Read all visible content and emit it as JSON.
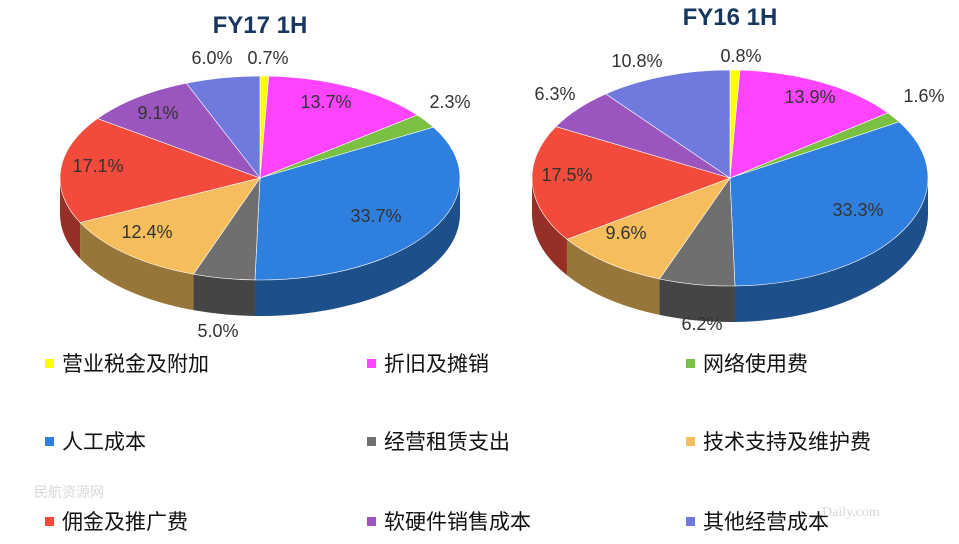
{
  "chart_data": [
    {
      "type": "pie",
      "title": "FY17 1H",
      "categories": [
        "营业税金及附加",
        "折旧及摊销",
        "网络使用费",
        "人工成本",
        "经营租赁支出",
        "技术支持及维护费",
        "佣金及推广费",
        "软硬件销售成本",
        "其他经营成本"
      ],
      "values": [
        0.7,
        13.7,
        2.3,
        33.7,
        5.0,
        12.4,
        17.1,
        9.1,
        6.0
      ],
      "labels": [
        "0.7%",
        "13.7%",
        "2.3%",
        "33.7%",
        "5.0%",
        "12.4%",
        "17.1%",
        "9.1%",
        "6.0%"
      ],
      "unit": "%"
    },
    {
      "type": "pie",
      "title": "FY16 1H",
      "categories": [
        "营业税金及附加",
        "折旧及摊销",
        "网络使用费",
        "人工成本",
        "经营租赁支出",
        "技术支持及维护费",
        "佣金及推广费",
        "软硬件销售成本",
        "其他经营成本"
      ],
      "values": [
        0.8,
        13.9,
        1.6,
        33.3,
        6.2,
        9.6,
        17.5,
        6.3,
        10.8
      ],
      "labels": [
        "0.8%",
        "13.9%",
        "1.6%",
        "33.3%",
        "6.2%",
        "9.6%",
        "17.5%",
        "6.3%",
        "10.8%"
      ],
      "unit": "%"
    }
  ],
  "legend": {
    "placement": "bottom",
    "items": [
      {
        "label": "营业税金及附加",
        "color": "#ffff00"
      },
      {
        "label": "折旧及摊销",
        "color": "#ff44ff"
      },
      {
        "label": "网络使用费",
        "color": "#7ac143"
      },
      {
        "label": "人工成本",
        "color": "#2f7fde"
      },
      {
        "label": "经营租赁支出",
        "color": "#6f6f6f"
      },
      {
        "label": "技术支持及维护费",
        "color": "#f5bd5c"
      },
      {
        "label": "佣金及推广费",
        "color": "#f24b3c"
      },
      {
        "label": "软硬件销售成本",
        "color": "#9b55bf"
      },
      {
        "label": "其他经营成本",
        "color": "#6f79de"
      }
    ]
  },
  "slice_colors": [
    "#ffff00",
    "#ff44ff",
    "#7ac143",
    "#2f7fde",
    "#6f6f6f",
    "#f5bd5c",
    "#f24b3c",
    "#9b55bf",
    "#6f79de"
  ],
  "watermarks": {
    "left": "民航资源网",
    "right": "Daily.com"
  }
}
